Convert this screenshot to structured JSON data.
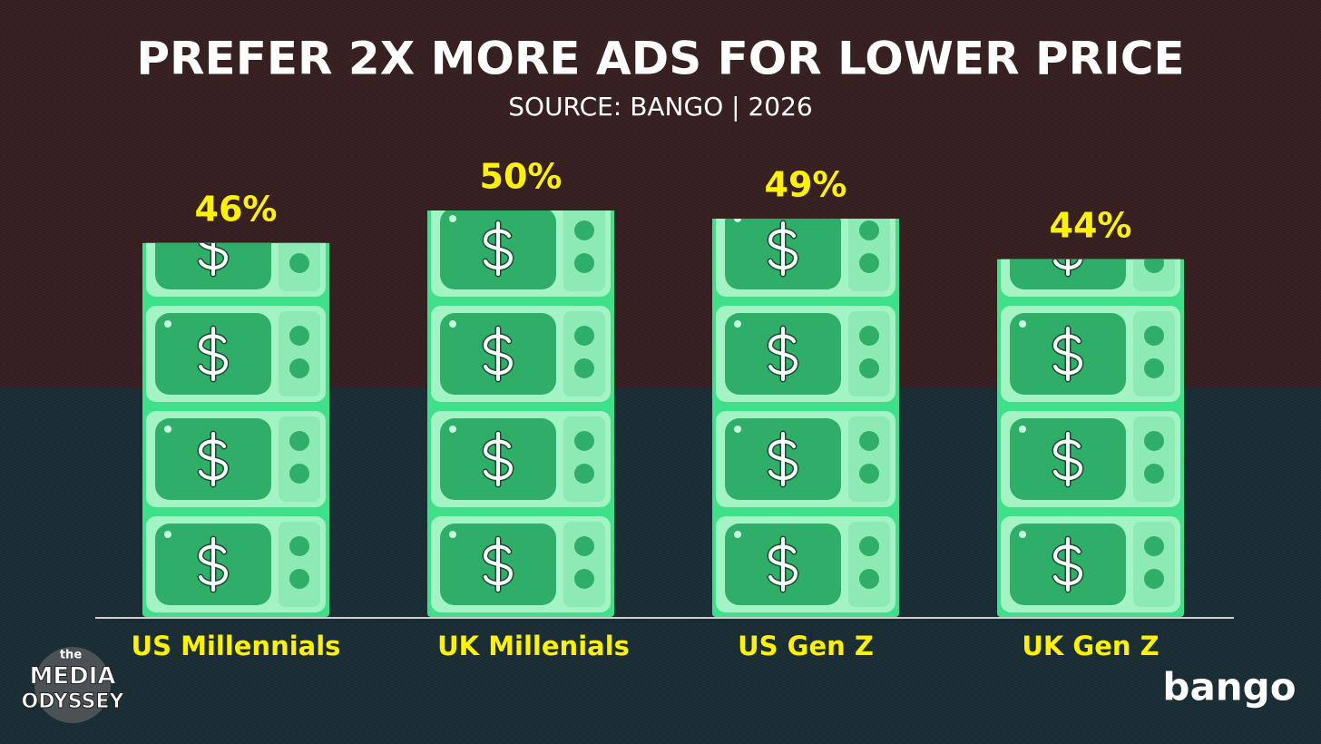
{
  "chart_data": {
    "type": "pictogram-bar",
    "title": "PREFER 2X MORE ADS FOR LOWER PRICE",
    "subtitle": "SOURCE: BANGO | 2026",
    "categories": [
      "US Millennials",
      "UK Millenials",
      "US Gen Z",
      "UK Gen Z"
    ],
    "values": [
      46,
      50,
      49,
      44
    ],
    "value_labels": [
      "46%",
      "50%",
      "49%",
      "44%"
    ],
    "color": "#3ee08a",
    "label_color": "#fff200",
    "logos": {
      "left": [
        "the",
        "MEDIA",
        "ODYSSEY"
      ],
      "right": "bango"
    }
  }
}
